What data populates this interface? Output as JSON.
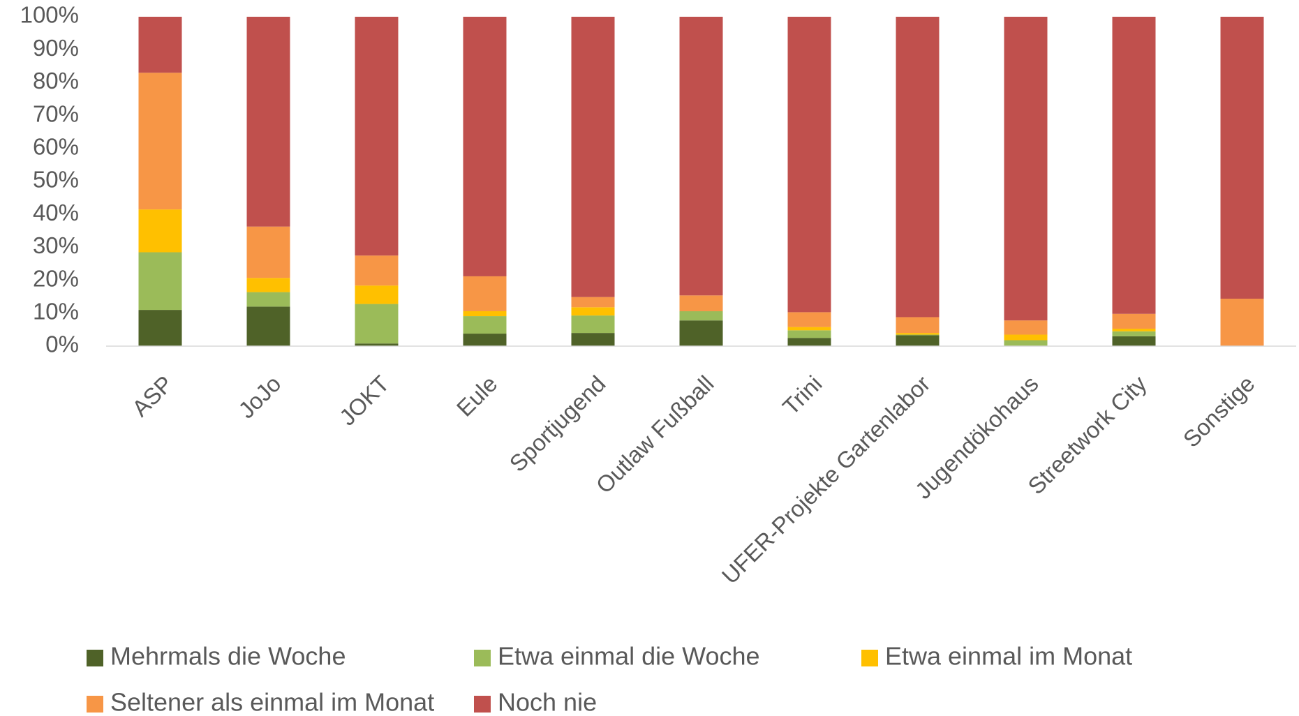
{
  "chart_data": {
    "type": "stacked_bar",
    "categories": [
      "ASP",
      "JoJo",
      "JOKT",
      "Eule",
      "Sportjugend",
      "Outlaw Fußball",
      "Trini",
      "UFER-Projekte Gartenlabor",
      "Jugendökohaus",
      "Streetwork City",
      "Sonstige"
    ],
    "series": [
      {
        "name": "Mehrmals die Woche",
        "color": "#4f6228",
        "values": [
          11,
          12,
          0.8,
          3.8,
          4,
          7.8,
          2.5,
          3.3,
          0,
          3,
          0
        ]
      },
      {
        "name": "Etwa einmal die Woche",
        "color": "#9bbb59",
        "values": [
          17.5,
          4.4,
          12,
          5.3,
          5.3,
          2.8,
          2.3,
          0.2,
          1.8,
          1.5,
          0
        ]
      },
      {
        "name": "Etwa einmal im Monat",
        "color": "#ffc000",
        "values": [
          13,
          4.3,
          5.6,
          1.5,
          2.5,
          0,
          1,
          0.5,
          1.7,
          0.8,
          0
        ]
      },
      {
        "name": "Seltener als einmal im Monat",
        "color": "#f79646",
        "values": [
          41.5,
          15.6,
          9.1,
          10.6,
          3.1,
          4.8,
          4.5,
          4.8,
          4.3,
          4.5,
          14.4
        ]
      },
      {
        "name": "Noch nie",
        "color": "#c0504d",
        "values": [
          17,
          63.7,
          72.5,
          78.8,
          85.1,
          84.6,
          89.7,
          91.2,
          92.2,
          90.2,
          85.6
        ]
      }
    ],
    "ylim": [
      0,
      100
    ],
    "yticks": [
      {
        "value": 0,
        "label": "0%"
      },
      {
        "value": 10,
        "label": "10%"
      },
      {
        "value": 20,
        "label": "20%"
      },
      {
        "value": 30,
        "label": "30%"
      },
      {
        "value": 40,
        "label": "40%"
      },
      {
        "value": 50,
        "label": "50%"
      },
      {
        "value": 60,
        "label": "60%"
      },
      {
        "value": 70,
        "label": "70%"
      },
      {
        "value": 80,
        "label": "80%"
      },
      {
        "value": 90,
        "label": "90%"
      },
      {
        "value": 100,
        "label": "100%"
      }
    ],
    "grid": false,
    "legend": "bottom"
  }
}
